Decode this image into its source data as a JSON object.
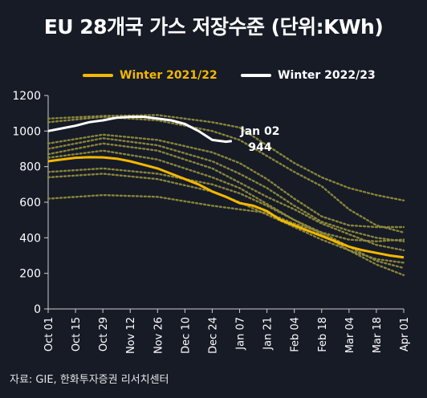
{
  "title": "EU 28개국 가스 저장수준 (단위:KWh)",
  "source": "자료: GIE,  한화투자증권 리서치센터",
  "colors": {
    "background": "#161b26",
    "winter_2021": "#f5b800",
    "winter_2022": "#ffffff",
    "history": "#8f8a3c"
  },
  "annotation": {
    "line1": "Jan 02",
    "line2": "944"
  },
  "chart_data": {
    "type": "line",
    "title": "EU 28개국 가스 저장수준 (단위:KWh)",
    "xlabel": "",
    "ylabel": "",
    "ylim": [
      0,
      1200
    ],
    "yticks": [
      "0",
      "200",
      "400",
      "600",
      "800",
      "1000",
      "1200"
    ],
    "xticks": [
      "Oct 01",
      "Oct 15",
      "Oct 29",
      "Nov 12",
      "Nov 26",
      "Dec 10",
      "Dec 24",
      "Jan 07",
      "Jan 21",
      "Feb 04",
      "Feb 18",
      "Mar 04",
      "Mar 18",
      "Apr 01"
    ],
    "x_day_offsets": [
      0,
      14,
      28,
      42,
      56,
      70,
      84,
      98,
      112,
      126,
      140,
      154,
      168,
      182
    ],
    "legend_position": "top",
    "grid": false,
    "series": [
      {
        "name": "Winter 2021/22",
        "style": "solid",
        "points": [
          [
            0,
            830
          ],
          [
            7,
            840
          ],
          [
            14,
            850
          ],
          [
            21,
            853
          ],
          [
            28,
            852
          ],
          [
            35,
            845
          ],
          [
            42,
            830
          ],
          [
            49,
            810
          ],
          [
            56,
            790
          ],
          [
            63,
            760
          ],
          [
            70,
            730
          ],
          [
            77,
            700
          ],
          [
            84,
            660
          ],
          [
            91,
            630
          ],
          [
            98,
            595
          ],
          [
            105,
            580
          ],
          [
            112,
            550
          ],
          [
            119,
            500
          ],
          [
            126,
            470
          ],
          [
            133,
            440
          ],
          [
            140,
            410
          ],
          [
            147,
            380
          ],
          [
            154,
            350
          ],
          [
            161,
            330
          ],
          [
            168,
            315
          ],
          [
            175,
            300
          ],
          [
            182,
            290
          ]
        ]
      },
      {
        "name": "Winter 2022/23",
        "style": "solid",
        "points": [
          [
            0,
            1000
          ],
          [
            7,
            1015
          ],
          [
            14,
            1030
          ],
          [
            21,
            1050
          ],
          [
            28,
            1060
          ],
          [
            35,
            1075
          ],
          [
            42,
            1080
          ],
          [
            49,
            1080
          ],
          [
            56,
            1070
          ],
          [
            63,
            1060
          ],
          [
            70,
            1040
          ],
          [
            77,
            1000
          ],
          [
            84,
            950
          ],
          [
            91,
            940
          ],
          [
            94,
            944
          ]
        ]
      },
      {
        "style": "dotted",
        "points": [
          [
            0,
            1070
          ],
          [
            28,
            1085
          ],
          [
            56,
            1090
          ],
          [
            84,
            1050
          ],
          [
            98,
            1020
          ],
          [
            112,
            920
          ],
          [
            126,
            820
          ],
          [
            140,
            740
          ],
          [
            154,
            680
          ],
          [
            168,
            640
          ],
          [
            182,
            610
          ]
        ]
      },
      {
        "style": "dotted",
        "points": [
          [
            0,
            1050
          ],
          [
            28,
            1080
          ],
          [
            56,
            1060
          ],
          [
            84,
            1000
          ],
          [
            98,
            950
          ],
          [
            112,
            860
          ],
          [
            126,
            770
          ],
          [
            140,
            690
          ],
          [
            154,
            560
          ],
          [
            168,
            470
          ],
          [
            182,
            430
          ]
        ]
      },
      {
        "style": "dotted",
        "points": [
          [
            0,
            930
          ],
          [
            28,
            980
          ],
          [
            56,
            950
          ],
          [
            84,
            880
          ],
          [
            98,
            820
          ],
          [
            112,
            730
          ],
          [
            126,
            620
          ],
          [
            140,
            520
          ],
          [
            154,
            470
          ],
          [
            168,
            460
          ],
          [
            182,
            460
          ]
        ]
      },
      {
        "style": "dotted",
        "points": [
          [
            0,
            900
          ],
          [
            28,
            960
          ],
          [
            56,
            920
          ],
          [
            84,
            830
          ],
          [
            98,
            760
          ],
          [
            112,
            680
          ],
          [
            126,
            580
          ],
          [
            140,
            490
          ],
          [
            154,
            440
          ],
          [
            168,
            400
          ],
          [
            182,
            380
          ]
        ]
      },
      {
        "style": "dotted",
        "points": [
          [
            0,
            870
          ],
          [
            28,
            930
          ],
          [
            56,
            890
          ],
          [
            84,
            790
          ],
          [
            98,
            710
          ],
          [
            112,
            630
          ],
          [
            126,
            560
          ],
          [
            140,
            480
          ],
          [
            154,
            420
          ],
          [
            168,
            360
          ],
          [
            182,
            330
          ]
        ]
      },
      {
        "style": "dotted",
        "points": [
          [
            0,
            850
          ],
          [
            28,
            890
          ],
          [
            56,
            840
          ],
          [
            84,
            740
          ],
          [
            98,
            680
          ],
          [
            112,
            590
          ],
          [
            126,
            500
          ],
          [
            140,
            430
          ],
          [
            154,
            350
          ],
          [
            168,
            270
          ],
          [
            182,
            230
          ]
        ]
      },
      {
        "style": "dotted",
        "points": [
          [
            0,
            770
          ],
          [
            28,
            790
          ],
          [
            56,
            760
          ],
          [
            84,
            700
          ],
          [
            98,
            650
          ],
          [
            112,
            580
          ],
          [
            126,
            500
          ],
          [
            140,
            420
          ],
          [
            154,
            330
          ],
          [
            168,
            250
          ],
          [
            182,
            190
          ]
        ]
      },
      {
        "style": "dotted",
        "points": [
          [
            0,
            740
          ],
          [
            28,
            760
          ],
          [
            56,
            730
          ],
          [
            84,
            660
          ],
          [
            98,
            600
          ],
          [
            112,
            530
          ],
          [
            126,
            460
          ],
          [
            140,
            390
          ],
          [
            154,
            330
          ],
          [
            168,
            280
          ],
          [
            182,
            260
          ]
        ]
      },
      {
        "style": "dotted",
        "points": [
          [
            0,
            620
          ],
          [
            28,
            640
          ],
          [
            56,
            630
          ],
          [
            84,
            580
          ],
          [
            98,
            560
          ],
          [
            112,
            540
          ],
          [
            126,
            480
          ],
          [
            140,
            430
          ],
          [
            154,
            390
          ],
          [
            168,
            380
          ],
          [
            182,
            390
          ]
        ]
      }
    ]
  }
}
